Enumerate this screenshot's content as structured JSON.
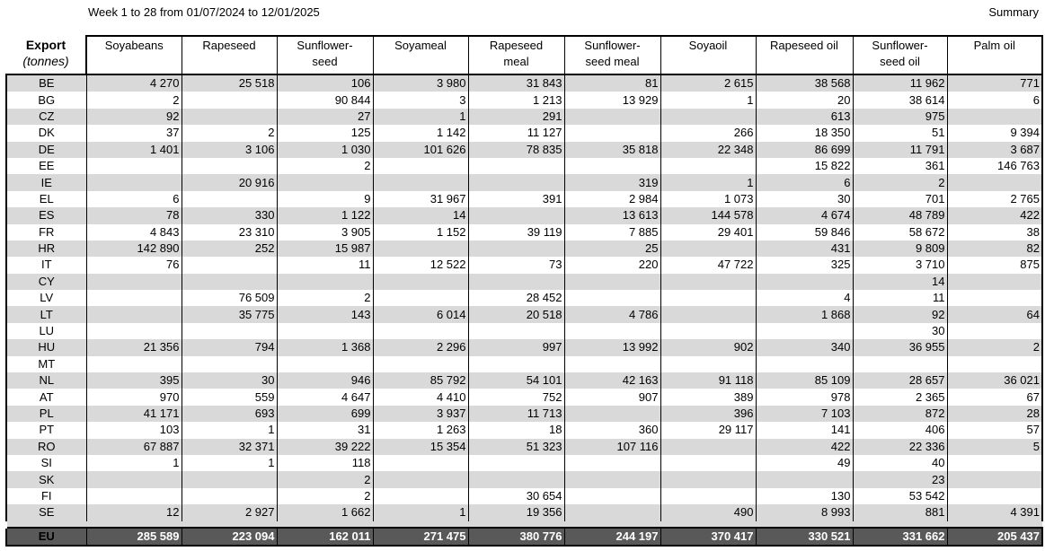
{
  "header": {
    "subtitle": "Week 1 to 28 from 01/07/2024 to 12/01/2025",
    "summary": "Summary"
  },
  "table": {
    "corner_title": "Export",
    "corner_unit": "(tonnes)",
    "columns": [
      [
        "Soyabeans",
        ""
      ],
      [
        "Rapeseed",
        ""
      ],
      [
        "Sunflower-",
        "seed"
      ],
      [
        "Soyameal",
        ""
      ],
      [
        "Rapeseed",
        "meal"
      ],
      [
        "Sunflower-",
        "seed meal"
      ],
      [
        "Soyaoil",
        ""
      ],
      [
        "Rapeseed oil",
        ""
      ],
      [
        "Sunflower-",
        "seed oil"
      ],
      [
        "Palm oil",
        ""
      ]
    ],
    "rows": [
      {
        "country": "BE",
        "values": [
          "4 270",
          "25 518",
          "106",
          "3 980",
          "31 843",
          "81",
          "2 615",
          "38 568",
          "11 962",
          "771"
        ]
      },
      {
        "country": "BG",
        "values": [
          "2",
          "",
          "90 844",
          "3",
          "1 213",
          "13 929",
          "1",
          "20",
          "38 614",
          "6"
        ]
      },
      {
        "country": "CZ",
        "values": [
          "92",
          "",
          "27",
          "1",
          "291",
          "",
          "",
          "613",
          "975",
          ""
        ]
      },
      {
        "country": "DK",
        "values": [
          "37",
          "2",
          "125",
          "1 142",
          "11 127",
          "",
          "266",
          "18 350",
          "51",
          "9 394"
        ]
      },
      {
        "country": "DE",
        "values": [
          "1 401",
          "3 106",
          "1 030",
          "101 626",
          "78 835",
          "35 818",
          "22 348",
          "86 699",
          "11 791",
          "3 687"
        ]
      },
      {
        "country": "EE",
        "values": [
          "",
          "",
          "2",
          "",
          "",
          "",
          "",
          "15 822",
          "361",
          "146 763"
        ]
      },
      {
        "country": "IE",
        "values": [
          "",
          "20 916",
          "",
          "",
          "",
          "319",
          "1",
          "6",
          "2",
          ""
        ]
      },
      {
        "country": "EL",
        "values": [
          "6",
          "",
          "9",
          "31 967",
          "391",
          "2 984",
          "1 073",
          "30",
          "701",
          "2 765"
        ]
      },
      {
        "country": "ES",
        "values": [
          "78",
          "330",
          "1 122",
          "14",
          "",
          "13 613",
          "144 578",
          "4 674",
          "48 789",
          "422"
        ]
      },
      {
        "country": "FR",
        "values": [
          "4 843",
          "23 310",
          "3 905",
          "1 152",
          "39 119",
          "7 885",
          "29 401",
          "59 846",
          "58 672",
          "38"
        ]
      },
      {
        "country": "HR",
        "values": [
          "142 890",
          "252",
          "15 987",
          "",
          "",
          "25",
          "",
          "431",
          "9 809",
          "82"
        ]
      },
      {
        "country": "IT",
        "values": [
          "76",
          "",
          "11",
          "12 522",
          "73",
          "220",
          "47 722",
          "325",
          "3 710",
          "875"
        ]
      },
      {
        "country": "CY",
        "values": [
          "",
          "",
          "",
          "",
          "",
          "",
          "",
          "",
          "14",
          ""
        ]
      },
      {
        "country": "LV",
        "values": [
          "",
          "76 509",
          "2",
          "",
          "28 452",
          "",
          "",
          "4",
          "11",
          ""
        ]
      },
      {
        "country": "LT",
        "values": [
          "",
          "35 775",
          "143",
          "6 014",
          "20 518",
          "4 786",
          "",
          "1 868",
          "92",
          "64"
        ]
      },
      {
        "country": "LU",
        "values": [
          "",
          "",
          "",
          "",
          "",
          "",
          "",
          "",
          "30",
          ""
        ]
      },
      {
        "country": "HU",
        "values": [
          "21 356",
          "794",
          "1 368",
          "2 296",
          "997",
          "13 992",
          "902",
          "340",
          "36 955",
          "2"
        ]
      },
      {
        "country": "MT",
        "values": [
          "",
          "",
          "",
          "",
          "",
          "",
          "",
          "",
          "",
          ""
        ]
      },
      {
        "country": "NL",
        "values": [
          "395",
          "30",
          "946",
          "85 792",
          "54 101",
          "42 163",
          "91 118",
          "85 109",
          "28 657",
          "36 021"
        ]
      },
      {
        "country": "AT",
        "values": [
          "970",
          "559",
          "4 647",
          "4 410",
          "752",
          "907",
          "389",
          "978",
          "2 365",
          "67"
        ]
      },
      {
        "country": "PL",
        "values": [
          "41 171",
          "693",
          "699",
          "3 937",
          "11 713",
          "",
          "396",
          "7 103",
          "872",
          "28"
        ]
      },
      {
        "country": "PT",
        "values": [
          "103",
          "1",
          "31",
          "1 263",
          "18",
          "360",
          "29 117",
          "141",
          "406",
          "57"
        ]
      },
      {
        "country": "RO",
        "values": [
          "67 887",
          "32 371",
          "39 222",
          "15 354",
          "51 323",
          "107 116",
          "",
          "422",
          "22 336",
          "5"
        ]
      },
      {
        "country": "SI",
        "values": [
          "1",
          "1",
          "118",
          "",
          "",
          "",
          "",
          "49",
          "40",
          ""
        ]
      },
      {
        "country": "SK",
        "values": [
          "",
          "",
          "2",
          "",
          "",
          "",
          "",
          "",
          "23",
          ""
        ]
      },
      {
        "country": "FI",
        "values": [
          "",
          "",
          "2",
          "",
          "30 654",
          "",
          "",
          "130",
          "53 542",
          ""
        ]
      },
      {
        "country": "SE",
        "values": [
          "12",
          "2 927",
          "1 662",
          "1",
          "19 356",
          "",
          "490",
          "8 993",
          "881",
          "4 391"
        ]
      }
    ],
    "total": {
      "country": "EU",
      "values": [
        "285 589",
        "223 094",
        "162 011",
        "271 475",
        "380 776",
        "244 197",
        "370 417",
        "330 521",
        "331 662",
        "205 437"
      ]
    }
  }
}
